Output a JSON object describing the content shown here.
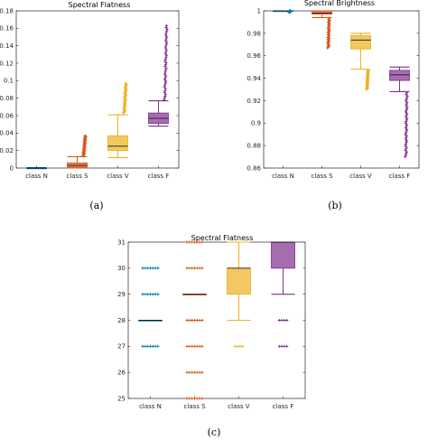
{
  "chart_data": [
    {
      "type": "box",
      "panel_label": "(a)",
      "title": "Spectral Flatness",
      "categories": [
        "class N",
        "class S",
        "class V",
        "class F"
      ],
      "colors": [
        "#0072BD",
        "#D95319",
        "#EDB120",
        "#7E2F8E"
      ],
      "ylim": [
        0,
        0.18
      ],
      "yticks": [
        0,
        0.02,
        0.04,
        0.06,
        0.08,
        0.1,
        0.12,
        0.14,
        0.16,
        0.18
      ],
      "ytick_labels": [
        "0",
        "0.02",
        "0.04",
        "0.06",
        "0.08",
        "0.1",
        "0.12",
        "0.14",
        "0.16",
        "0.18"
      ],
      "boxes": [
        {
          "whisker_low": 0,
          "q1": 0,
          "median": 0,
          "q3": 0,
          "whisker_high": 0.0005,
          "outlier_range": null
        },
        {
          "whisker_low": 0,
          "q1": 0.001,
          "median": 0.003,
          "q3": 0.006,
          "whisker_high": 0.013,
          "outlier_range": [
            0.014,
            0.037
          ]
        },
        {
          "whisker_low": 0.012,
          "q1": 0.02,
          "median": 0.025,
          "q3": 0.037,
          "whisker_high": 0.061,
          "outlier_range": [
            0.063,
            0.097
          ]
        },
        {
          "whisker_low": 0.048,
          "q1": 0.051,
          "median": 0.057,
          "q3": 0.063,
          "whisker_high": 0.077,
          "outlier_range": [
            0.078,
            0.163
          ]
        }
      ]
    },
    {
      "type": "box",
      "panel_label": "(b)",
      "title": "Spectral Brightness",
      "categories": [
        "class N",
        "class S",
        "class V",
        "class F"
      ],
      "colors": [
        "#0072BD",
        "#D95319",
        "#EDB120",
        "#7E2F8E"
      ],
      "ylim": [
        0.86,
        1.0
      ],
      "yticks": [
        0.86,
        0.88,
        0.9,
        0.92,
        0.94,
        0.96,
        0.98,
        1
      ],
      "ytick_labels": [
        "0.86",
        "0.88",
        "0.9",
        "0.92",
        "0.94",
        "0.96",
        "0.98",
        "1"
      ],
      "boxes": [
        {
          "whisker_low": 1.0,
          "q1": 1.0,
          "median": 1.0,
          "q3": 1.0,
          "whisker_high": 1.0,
          "outlier_range": [
            0.999,
            1.0
          ]
        },
        {
          "whisker_low": 0.994,
          "q1": 0.997,
          "median": 0.998,
          "q3": 1.0,
          "whisker_high": 1.0,
          "outlier_range": [
            0.967,
            0.993
          ]
        },
        {
          "whisker_low": 0.948,
          "q1": 0.966,
          "median": 0.974,
          "q3": 0.978,
          "whisker_high": 0.98,
          "outlier_range": [
            0.93,
            0.947
          ]
        },
        {
          "whisker_low": 0.928,
          "q1": 0.938,
          "median": 0.943,
          "q3": 0.947,
          "whisker_high": 0.95,
          "outlier_range": [
            0.87,
            0.927
          ]
        }
      ]
    },
    {
      "type": "box",
      "panel_label": "(c)",
      "title": "Spectral Flatness",
      "categories": [
        "class N",
        "class S",
        "class V",
        "class F"
      ],
      "colors": [
        "#0072BD",
        "#D95319",
        "#EDB120",
        "#7E2F8E"
      ],
      "ylim": [
        25,
        31
      ],
      "yticks": [
        25,
        26,
        27,
        28,
        29,
        30,
        31
      ],
      "ytick_labels": [
        "25",
        "26",
        "27",
        "28",
        "29",
        "30",
        "31"
      ],
      "boxes": [
        {
          "whisker_low": 28,
          "q1": 28,
          "median": 28,
          "q3": 28,
          "whisker_high": 28,
          "outliers": [
            27,
            29,
            30
          ]
        },
        {
          "whisker_low": 29,
          "q1": 29,
          "median": 29,
          "q3": 29,
          "whisker_high": 29,
          "outliers": [
            25,
            26,
            27,
            28,
            30,
            31
          ]
        },
        {
          "whisker_low": 28,
          "q1": 29,
          "median": 30,
          "q3": 30,
          "whisker_high": 31,
          "outliers": [
            27
          ]
        },
        {
          "whisker_low": 29,
          "q1": 30,
          "median": 31,
          "q3": 31,
          "whisker_high": 31,
          "outliers": [
            27,
            28
          ]
        }
      ]
    }
  ]
}
